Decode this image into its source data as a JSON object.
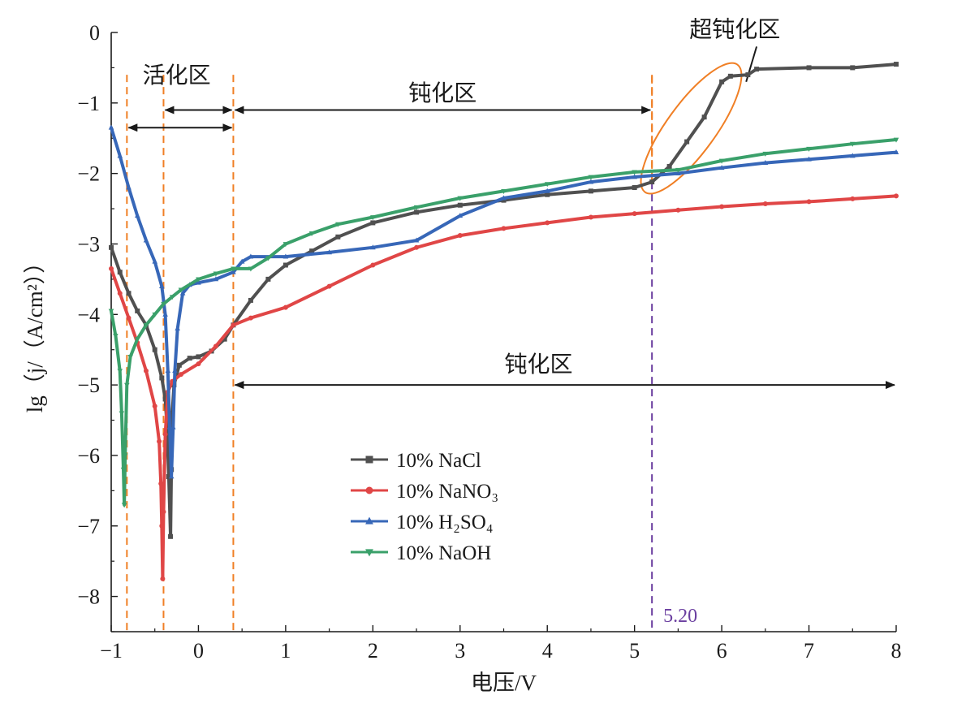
{
  "chart_data": {
    "type": "line",
    "xlabel": "电压/V",
    "ylabel": "lg（j/（A/cm²））",
    "xlim": [
      -1,
      8
    ],
    "ylim": [
      -8.5,
      0
    ],
    "x_ticks": [
      "−1",
      "0",
      "1",
      "2",
      "3",
      "4",
      "5",
      "6",
      "7",
      "8"
    ],
    "y_ticks": [
      "0",
      "−1",
      "−2",
      "−3",
      "−4",
      "−5",
      "−6",
      "−7",
      "−8"
    ],
    "x_tick_values": [
      -1,
      0,
      1,
      2,
      3,
      4,
      5,
      6,
      7,
      8
    ],
    "y_tick_values": [
      0,
      -1,
      -2,
      -3,
      -4,
      -5,
      -6,
      -7,
      -8
    ],
    "grid": false,
    "legend_position": "lower-left (center)",
    "series": [
      {
        "name": "10% NaCl",
        "color": "#505050",
        "marker": "square",
        "points": [
          [
            -1.0,
            -3.05
          ],
          [
            -0.9,
            -3.4
          ],
          [
            -0.8,
            -3.7
          ],
          [
            -0.7,
            -3.95
          ],
          [
            -0.6,
            -4.15
          ],
          [
            -0.5,
            -4.5
          ],
          [
            -0.42,
            -4.9
          ],
          [
            -0.38,
            -5.2
          ],
          [
            -0.36,
            -5.6
          ],
          [
            -0.34,
            -6.3
          ],
          [
            -0.32,
            -7.15
          ],
          [
            -0.31,
            -6.2
          ],
          [
            -0.3,
            -5.4
          ],
          [
            -0.28,
            -5.0
          ],
          [
            -0.22,
            -4.72
          ],
          [
            -0.1,
            -4.62
          ],
          [
            0.0,
            -4.6
          ],
          [
            0.15,
            -4.52
          ],
          [
            0.3,
            -4.35
          ],
          [
            0.4,
            -4.15
          ],
          [
            0.6,
            -3.8
          ],
          [
            0.8,
            -3.5
          ],
          [
            1.0,
            -3.3
          ],
          [
            1.3,
            -3.1
          ],
          [
            1.6,
            -2.9
          ],
          [
            2.0,
            -2.7
          ],
          [
            2.5,
            -2.55
          ],
          [
            3.0,
            -2.45
          ],
          [
            3.5,
            -2.38
          ],
          [
            4.0,
            -2.3
          ],
          [
            4.5,
            -2.25
          ],
          [
            5.0,
            -2.2
          ],
          [
            5.2,
            -2.12
          ],
          [
            5.4,
            -1.9
          ],
          [
            5.6,
            -1.55
          ],
          [
            5.8,
            -1.2
          ],
          [
            6.0,
            -0.7
          ],
          [
            6.1,
            -0.62
          ],
          [
            6.3,
            -0.6
          ],
          [
            6.4,
            -0.52
          ],
          [
            7.0,
            -0.5
          ],
          [
            7.5,
            -0.5
          ],
          [
            8.0,
            -0.45
          ]
        ]
      },
      {
        "name": "10% NaNO₃",
        "color": "#e04646",
        "marker": "circle",
        "points": [
          [
            -1.0,
            -3.35
          ],
          [
            -0.9,
            -3.7
          ],
          [
            -0.8,
            -4.05
          ],
          [
            -0.7,
            -4.4
          ],
          [
            -0.6,
            -4.8
          ],
          [
            -0.5,
            -5.3
          ],
          [
            -0.45,
            -5.8
          ],
          [
            -0.43,
            -6.4
          ],
          [
            -0.42,
            -7.0
          ],
          [
            -0.41,
            -7.75
          ],
          [
            -0.4,
            -6.8
          ],
          [
            -0.38,
            -5.7
          ],
          [
            -0.35,
            -5.1
          ],
          [
            -0.3,
            -4.95
          ],
          [
            -0.2,
            -4.85
          ],
          [
            0.0,
            -4.7
          ],
          [
            0.2,
            -4.45
          ],
          [
            0.4,
            -4.15
          ],
          [
            0.6,
            -4.05
          ],
          [
            1.0,
            -3.9
          ],
          [
            1.5,
            -3.6
          ],
          [
            2.0,
            -3.3
          ],
          [
            2.5,
            -3.05
          ],
          [
            3.0,
            -2.88
          ],
          [
            3.5,
            -2.78
          ],
          [
            4.0,
            -2.7
          ],
          [
            4.5,
            -2.62
          ],
          [
            5.0,
            -2.57
          ],
          [
            5.5,
            -2.52
          ],
          [
            6.0,
            -2.47
          ],
          [
            6.5,
            -2.43
          ],
          [
            7.0,
            -2.4
          ],
          [
            7.5,
            -2.36
          ],
          [
            8.0,
            -2.32
          ]
        ]
      },
      {
        "name": "10% H₂SO₄",
        "color": "#3767b8",
        "marker": "triangle-up",
        "points": [
          [
            -1.0,
            -1.35
          ],
          [
            -0.9,
            -1.75
          ],
          [
            -0.8,
            -2.2
          ],
          [
            -0.7,
            -2.6
          ],
          [
            -0.6,
            -2.95
          ],
          [
            -0.5,
            -3.25
          ],
          [
            -0.42,
            -3.6
          ],
          [
            -0.38,
            -4.0
          ],
          [
            -0.35,
            -4.8
          ],
          [
            -0.33,
            -5.6
          ],
          [
            -0.31,
            -6.3
          ],
          [
            -0.29,
            -5.6
          ],
          [
            -0.27,
            -4.8
          ],
          [
            -0.24,
            -4.2
          ],
          [
            -0.18,
            -3.7
          ],
          [
            -0.1,
            -3.58
          ],
          [
            0.0,
            -3.55
          ],
          [
            0.2,
            -3.5
          ],
          [
            0.4,
            -3.4
          ],
          [
            0.5,
            -3.25
          ],
          [
            0.6,
            -3.18
          ],
          [
            1.0,
            -3.18
          ],
          [
            1.5,
            -3.12
          ],
          [
            2.0,
            -3.05
          ],
          [
            2.5,
            -2.95
          ],
          [
            3.0,
            -2.6
          ],
          [
            3.5,
            -2.35
          ],
          [
            4.0,
            -2.25
          ],
          [
            4.5,
            -2.12
          ],
          [
            5.0,
            -2.05
          ],
          [
            5.5,
            -2.0
          ],
          [
            6.0,
            -1.92
          ],
          [
            6.5,
            -1.85
          ],
          [
            7.0,
            -1.8
          ],
          [
            7.5,
            -1.75
          ],
          [
            8.0,
            -1.7
          ]
        ]
      },
      {
        "name": "10% NaOH",
        "color": "#3aa06a",
        "marker": "triangle-down",
        "points": [
          [
            -1.0,
            -3.95
          ],
          [
            -0.95,
            -4.3
          ],
          [
            -0.9,
            -4.8
          ],
          [
            -0.88,
            -5.4
          ],
          [
            -0.86,
            -6.2
          ],
          [
            -0.85,
            -6.7
          ],
          [
            -0.84,
            -6.0
          ],
          [
            -0.82,
            -5.0
          ],
          [
            -0.78,
            -4.6
          ],
          [
            -0.7,
            -4.35
          ],
          [
            -0.6,
            -4.15
          ],
          [
            -0.5,
            -4.0
          ],
          [
            -0.4,
            -3.85
          ],
          [
            -0.3,
            -3.75
          ],
          [
            -0.2,
            -3.65
          ],
          [
            0.0,
            -3.5
          ],
          [
            0.2,
            -3.42
          ],
          [
            0.4,
            -3.35
          ],
          [
            0.6,
            -3.35
          ],
          [
            0.8,
            -3.2
          ],
          [
            1.0,
            -3.0
          ],
          [
            1.3,
            -2.85
          ],
          [
            1.6,
            -2.72
          ],
          [
            2.0,
            -2.62
          ],
          [
            2.5,
            -2.48
          ],
          [
            3.0,
            -2.35
          ],
          [
            3.5,
            -2.25
          ],
          [
            4.0,
            -2.15
          ],
          [
            4.5,
            -2.05
          ],
          [
            5.0,
            -1.98
          ],
          [
            5.5,
            -1.95
          ],
          [
            6.0,
            -1.82
          ],
          [
            6.5,
            -1.72
          ],
          [
            7.0,
            -1.65
          ],
          [
            7.5,
            -1.58
          ],
          [
            8.0,
            -1.52
          ]
        ]
      }
    ],
    "annotations": {
      "vlines": [
        {
          "x": -0.82,
          "color": "#f07f25"
        },
        {
          "x": -0.4,
          "color": "#f07f25"
        },
        {
          "x": 0.4,
          "color": "#f07f25"
        },
        {
          "x": 5.2,
          "color": "#f07f25",
          "y_to": -0.8
        },
        {
          "x": 5.2,
          "color": "#6b3fa0",
          "from_y": -2.12,
          "label": "5.20"
        }
      ],
      "regions": [
        {
          "label": "活化区",
          "x1": -0.82,
          "x2": 0.4,
          "arrow_y": -1.35,
          "label_x": -0.25,
          "label_y": -0.6
        },
        {
          "label": "钝化区",
          "x1": 0.4,
          "x2": 5.2,
          "arrow_y": -1.1,
          "label_x": 2.8,
          "label_y": -0.85
        },
        {
          "label": "钝化区",
          "x1": 0.4,
          "x2": 8.0,
          "arrow_y": -5.0,
          "label_x": 3.9,
          "label_y": -4.7
        },
        {
          "label": "超钝化区",
          "label_x": 6.15,
          "label_y": 0.05
        }
      ],
      "second_arrow_activation": {
        "x1": -0.4,
        "x2": 0.4,
        "arrow_y": -1.1
      },
      "ellipse": {
        "cx": 5.65,
        "cy": -1.36,
        "rx_data": 0.95,
        "ry_data": 0.28,
        "angle_deg": -54,
        "color": "#f07f25"
      }
    }
  }
}
